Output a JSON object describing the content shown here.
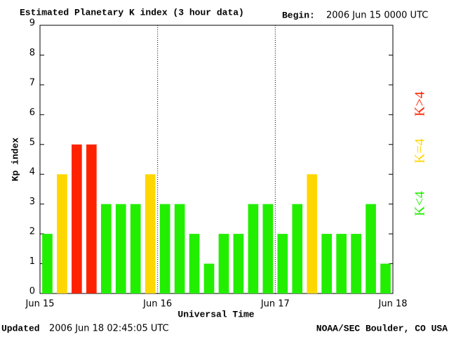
{
  "chart_data": {
    "type": "bar",
    "title": "Estimated Planetary K index (3 hour data)",
    "begin_label": "Begin:",
    "begin": "2006 Jun 15 0000 UTC",
    "x_label": "Universal Time",
    "y_label": "Kp index",
    "footer_left_label": "Updated",
    "footer_left": "2006 Jun 18 02:45:05 UTC",
    "footer_right": "NOAA/SEC Boulder, CO USA",
    "x": [
      0,
      3,
      6,
      9,
      12,
      15,
      18,
      21,
      24,
      27,
      30,
      33,
      36,
      39,
      42,
      45,
      48,
      51,
      54,
      57,
      60,
      63,
      66,
      69
    ],
    "values": [
      2,
      4,
      5,
      5,
      3,
      3,
      3,
      4,
      3,
      3,
      2,
      1,
      2,
      2,
      3,
      3,
      2,
      3,
      4,
      2,
      2,
      2,
      3,
      1
    ],
    "colors": [
      "#22ee00",
      "#ffd700",
      "#ff2200",
      "#ff2200",
      "#22ee00",
      "#22ee00",
      "#22ee00",
      "#ffd700",
      "#22ee00",
      "#22ee00",
      "#22ee00",
      "#22ee00",
      "#22ee00",
      "#22ee00",
      "#22ee00",
      "#22ee00",
      "#22ee00",
      "#22ee00",
      "#ffd700",
      "#22ee00",
      "#22ee00",
      "#22ee00",
      "#22ee00",
      "#22ee00"
    ],
    "legend": [
      {
        "name": "K<4",
        "color": "#22ee00"
      },
      {
        "name": "K=4",
        "color": "#ffd700"
      },
      {
        "name": "K>4",
        "color": "#ff2200"
      }
    ],
    "xlim": [
      0,
      72
    ],
    "xticks": [
      {
        "value": 0,
        "label": "Jun 15"
      },
      {
        "value": 24,
        "label": "Jun 16"
      },
      {
        "value": 48,
        "label": "Jun 17"
      },
      {
        "value": 72,
        "label": "Jun 18"
      }
    ],
    "ylim": [
      0,
      9
    ],
    "yticks": [
      0,
      1,
      2,
      3,
      4,
      5,
      6,
      7,
      8,
      9
    ]
  }
}
